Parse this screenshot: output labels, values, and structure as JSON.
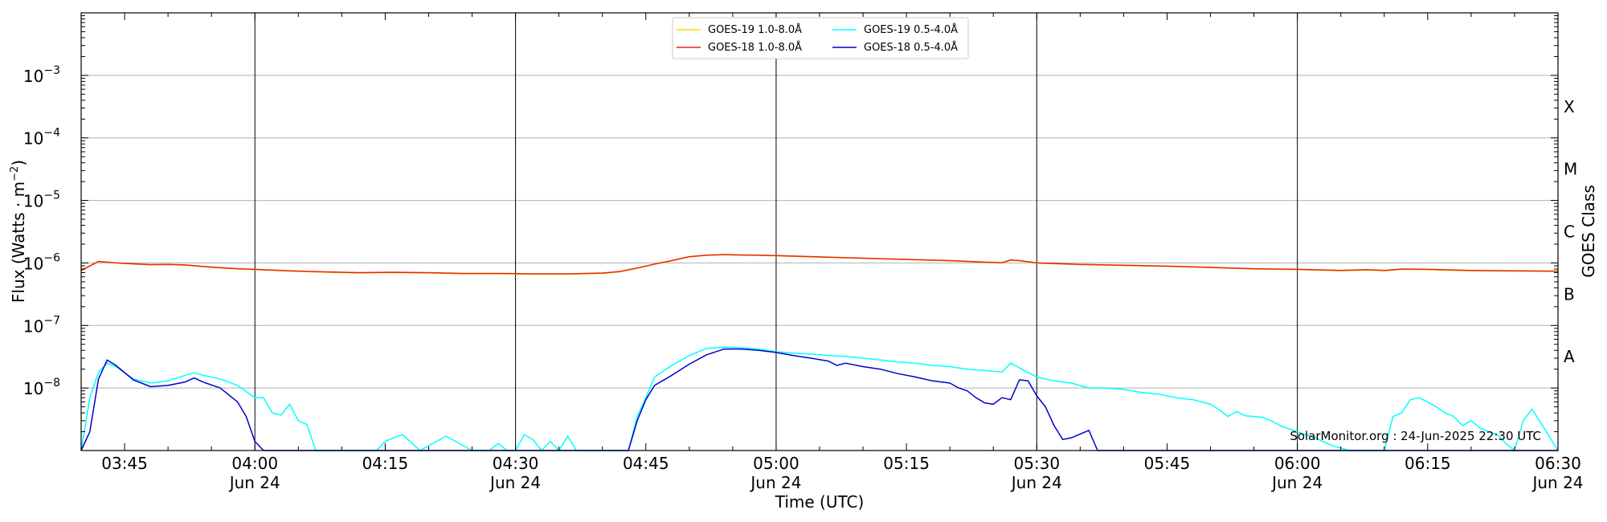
{
  "chart_data": {
    "type": "line",
    "ylabel": "Flux (Watts · m",
    "ylabel_sup": "−2",
    "ylabel_close": ")",
    "xlabel": "Time (UTC)",
    "right_label": "GOES Class",
    "watermark": "SolarMonitor.org : 24-Jun-2025 22:30 UTC",
    "y_scale": "log",
    "ylim": [
      1e-09,
      0.01
    ],
    "xlim": [
      "03:40",
      "06:30"
    ],
    "y_ticks": [
      {
        "value": 1e-08,
        "base": "10",
        "exp": "−8"
      },
      {
        "value": 1e-07,
        "base": "10",
        "exp": "−7"
      },
      {
        "value": 1e-06,
        "base": "10",
        "exp": "−6"
      },
      {
        "value": 1e-05,
        "base": "10",
        "exp": "−5"
      },
      {
        "value": 0.0001,
        "base": "10",
        "exp": "−4"
      },
      {
        "value": 0.001,
        "base": "10",
        "exp": "−3"
      }
    ],
    "x_ticks": [
      {
        "time": "03:45",
        "label": "03:45",
        "date": ""
      },
      {
        "time": "04:00",
        "label": "04:00",
        "date": "Jun 24"
      },
      {
        "time": "04:15",
        "label": "04:15",
        "date": ""
      },
      {
        "time": "04:30",
        "label": "04:30",
        "date": "Jun 24"
      },
      {
        "time": "04:45",
        "label": "04:45",
        "date": ""
      },
      {
        "time": "05:00",
        "label": "05:00",
        "date": "Jun 24"
      },
      {
        "time": "05:15",
        "label": "05:15",
        "date": ""
      },
      {
        "time": "05:30",
        "label": "05:30",
        "date": "Jun 24"
      },
      {
        "time": "05:45",
        "label": "05:45",
        "date": ""
      },
      {
        "time": "06:00",
        "label": "06:00",
        "date": "Jun 24"
      },
      {
        "time": "06:15",
        "label": "06:15",
        "date": ""
      },
      {
        "time": "06:30",
        "label": "06:30",
        "date": "Jun 24"
      }
    ],
    "vertical_lines": [
      "04:00",
      "04:30",
      "05:00",
      "05:30",
      "06:00"
    ],
    "goes_classes": [
      {
        "label": "A",
        "low": 1e-08
      },
      {
        "label": "B",
        "low": 1e-07
      },
      {
        "label": "C",
        "low": 1e-06
      },
      {
        "label": "M",
        "low": 1e-05
      },
      {
        "label": "X",
        "low": 0.0001
      }
    ],
    "grid": true,
    "legend_position": "top-center",
    "series": [
      {
        "name": "GOES-19 1.0-8.0Å",
        "color": "#ffd700",
        "x": [
          "03:40",
          "03:42",
          "03:44",
          "03:46",
          "03:48",
          "03:50",
          "03:52",
          "03:54",
          "03:56",
          "03:58",
          "04:00",
          "04:04",
          "04:08",
          "04:12",
          "04:16",
          "04:20",
          "04:24",
          "04:28",
          "04:32",
          "04:36",
          "04:40",
          "04:42",
          "04:44",
          "04:46",
          "04:48",
          "04:50",
          "04:52",
          "04:54",
          "04:56",
          "04:58",
          "05:00",
          "05:05",
          "05:10",
          "05:15",
          "05:20",
          "05:24",
          "05:26",
          "05:27",
          "05:28",
          "05:30",
          "05:35",
          "05:40",
          "05:45",
          "05:50",
          "05:55",
          "06:00",
          "06:05",
          "06:08",
          "06:10",
          "06:12",
          "06:15",
          "06:20",
          "06:25",
          "06:30"
        ],
        "y": [
          7.5e-07,
          1.05e-06,
          1e-06,
          9.6e-07,
          9.3e-07,
          9.4e-07,
          9.2e-07,
          8.7e-07,
          8.3e-07,
          8e-07,
          7.8e-07,
          7.4e-07,
          7.1e-07,
          6.9e-07,
          7e-07,
          6.9e-07,
          6.7e-07,
          6.7e-07,
          6.6e-07,
          6.6e-07,
          6.8e-07,
          7.2e-07,
          8.2e-07,
          9.5e-07,
          1.08e-06,
          1.25e-06,
          1.32e-06,
          1.35e-06,
          1.33e-06,
          1.32e-06,
          1.3e-06,
          1.24e-06,
          1.18e-06,
          1.13e-06,
          1.08e-06,
          1.02e-06,
          1e-06,
          1.1e-06,
          1.08e-06,
          9.9e-07,
          9.4e-07,
          9.1e-07,
          8.8e-07,
          8.4e-07,
          8e-07,
          7.8e-07,
          7.5e-07,
          7.7e-07,
          7.5e-07,
          7.9e-07,
          7.8e-07,
          7.5e-07,
          7.4e-07,
          7.3e-07
        ]
      },
      {
        "name": "GOES-18 1.0-8.0Å",
        "color": "#e8260c",
        "x": [
          "03:40",
          "03:42",
          "03:44",
          "03:46",
          "03:48",
          "03:50",
          "03:52",
          "03:54",
          "03:56",
          "03:58",
          "04:00",
          "04:04",
          "04:08",
          "04:12",
          "04:16",
          "04:20",
          "04:24",
          "04:28",
          "04:32",
          "04:36",
          "04:40",
          "04:42",
          "04:44",
          "04:46",
          "04:48",
          "04:50",
          "04:52",
          "04:54",
          "04:56",
          "04:58",
          "05:00",
          "05:05",
          "05:10",
          "05:15",
          "05:20",
          "05:24",
          "05:26",
          "05:27",
          "05:28",
          "05:30",
          "05:35",
          "05:40",
          "05:45",
          "05:50",
          "05:55",
          "06:00",
          "06:05",
          "06:08",
          "06:10",
          "06:12",
          "06:15",
          "06:20",
          "06:25",
          "06:30"
        ],
        "y": [
          7.6e-07,
          1.06e-06,
          1e-06,
          9.7e-07,
          9.4e-07,
          9.5e-07,
          9.3e-07,
          8.8e-07,
          8.4e-07,
          8.1e-07,
          7.9e-07,
          7.5e-07,
          7.2e-07,
          7e-07,
          7.1e-07,
          7e-07,
          6.8e-07,
          6.8e-07,
          6.7e-07,
          6.7e-07,
          6.9e-07,
          7.3e-07,
          8.3e-07,
          9.6e-07,
          1.09e-06,
          1.26e-06,
          1.33e-06,
          1.36e-06,
          1.34e-06,
          1.33e-06,
          1.31e-06,
          1.25e-06,
          1.19e-06,
          1.14e-06,
          1.09e-06,
          1.03e-06,
          1.01e-06,
          1.12e-06,
          1.09e-06,
          1e-06,
          9.5e-07,
          9.2e-07,
          8.9e-07,
          8.5e-07,
          8.1e-07,
          7.9e-07,
          7.6e-07,
          7.8e-07,
          7.6e-07,
          8e-07,
          7.9e-07,
          7.6e-07,
          7.5e-07,
          7.4e-07
        ]
      },
      {
        "name": "GOES-19 0.5-4.0Å",
        "color": "#00ffff",
        "x": [
          "03:40",
          "03:41",
          "03:42",
          "03:43",
          "03:44",
          "03:46",
          "03:48",
          "03:50",
          "03:52",
          "03:53",
          "03:54",
          "03:56",
          "03:58",
          "04:00",
          "04:01",
          "04:02",
          "04:03",
          "04:04",
          "04:05",
          "04:06",
          "04:07",
          "04:10",
          "04:12",
          "04:14",
          "04:15",
          "04:16",
          "04:17",
          "04:19",
          "04:22",
          "04:25",
          "04:27",
          "04:28",
          "04:29",
          "04:30",
          "04:31",
          "04:32",
          "04:33",
          "04:34",
          "04:35",
          "04:36",
          "04:37",
          "04:38",
          "04:39",
          "04:40",
          "04:41",
          "04:42",
          "04:43",
          "04:44",
          "04:45",
          "04:46",
          "04:48",
          "04:50",
          "04:52",
          "04:54",
          "04:56",
          "04:58",
          "05:00",
          "05:02",
          "05:04",
          "05:06",
          "05:08",
          "05:10",
          "05:12",
          "05:14",
          "05:16",
          "05:18",
          "05:20",
          "05:22",
          "05:24",
          "05:26",
          "05:27",
          "05:28",
          "05:30",
          "05:32",
          "05:34",
          "05:36",
          "05:38",
          "05:40",
          "05:42",
          "05:44",
          "05:46",
          "05:48",
          "05:50",
          "05:51",
          "05:52",
          "05:53",
          "05:54",
          "05:56",
          "05:57",
          "05:58",
          "06:00",
          "06:02",
          "06:04",
          "06:06",
          "06:07",
          "06:08",
          "06:09",
          "06:10",
          "06:11",
          "06:12",
          "06:13",
          "06:14",
          "06:15",
          "06:16",
          "06:17",
          "06:18",
          "06:19",
          "06:20",
          "06:21",
          "06:22",
          "06:23",
          "06:24",
          "06:25",
          "06:26",
          "06:27",
          "06:28",
          "06:30"
        ],
        "y": [
          1e-09,
          7e-09,
          1.8e-08,
          2.5e-08,
          2.2e-08,
          1.4e-08,
          1.2e-08,
          1.3e-08,
          1.6e-08,
          1.75e-08,
          1.6e-08,
          1.4e-08,
          1.1e-08,
          7e-09,
          7e-09,
          4e-09,
          3.7e-09,
          5.5e-09,
          3e-09,
          2.6e-09,
          1e-09,
          1e-09,
          1e-09,
          1e-09,
          1.4e-09,
          1.6e-09,
          1.8e-09,
          1e-09,
          1.7e-09,
          1e-09,
          1e-09,
          1.3e-09,
          1e-09,
          1e-09,
          1.8e-09,
          1.5e-09,
          1e-09,
          1.4e-09,
          1e-09,
          1.7e-09,
          1e-09,
          1e-09,
          1e-09,
          1e-09,
          1e-09,
          1e-09,
          1e-09,
          3.5e-09,
          7e-09,
          1.5e-08,
          2.3e-08,
          3.3e-08,
          4.3e-08,
          4.5e-08,
          4.4e-08,
          4.2e-08,
          3.8e-08,
          3.6e-08,
          3.5e-08,
          3.3e-08,
          3.2e-08,
          3e-08,
          2.8e-08,
          2.6e-08,
          2.5e-08,
          2.3e-08,
          2.2e-08,
          2e-08,
          1.9e-08,
          1.8e-08,
          2.5e-08,
          2.1e-08,
          1.5e-08,
          1.3e-08,
          1.2e-08,
          1e-08,
          1e-08,
          9.5e-09,
          8.5e-09,
          8e-09,
          7e-09,
          6.5e-09,
          5.5e-09,
          4.5e-09,
          3.5e-09,
          4.2e-09,
          3.6e-09,
          3.4e-09,
          3e-09,
          2.5e-09,
          2e-09,
          1.6e-09,
          1.2e-09,
          1e-09,
          1e-09,
          1e-09,
          1e-09,
          1e-09,
          3.5e-09,
          4e-09,
          6.5e-09,
          7e-09,
          6e-09,
          5e-09,
          4e-09,
          3.5e-09,
          2.5e-09,
          3e-09,
          2.3e-09,
          2e-09,
          1.8e-09,
          1.3e-09,
          1e-09,
          3e-09,
          4.6e-09,
          2.8e-09,
          1e-09
        ]
      },
      {
        "name": "GOES-18 0.5-4.0Å",
        "color": "#0000cc",
        "x": [
          "03:40",
          "03:41",
          "03:42",
          "03:43",
          "03:44",
          "03:46",
          "03:48",
          "03:50",
          "03:52",
          "03:53",
          "03:54",
          "03:56",
          "03:58",
          "03:59",
          "04:00",
          "04:01",
          "04:30",
          "04:43",
          "04:44",
          "04:45",
          "04:46",
          "04:48",
          "04:50",
          "04:52",
          "04:54",
          "04:56",
          "04:58",
          "05:00",
          "05:02",
          "05:04",
          "05:06",
          "05:07",
          "05:08",
          "05:10",
          "05:12",
          "05:14",
          "05:16",
          "05:18",
          "05:20",
          "05:21",
          "05:22",
          "05:23",
          "05:24",
          "05:25",
          "05:26",
          "05:27",
          "05:28",
          "05:29",
          "05:30",
          "05:31",
          "05:32",
          "05:33",
          "05:34",
          "05:36",
          "05:37",
          "06:30"
        ],
        "y": [
          1e-09,
          2e-09,
          1.4e-08,
          2.8e-08,
          2.3e-08,
          1.35e-08,
          1.05e-08,
          1.1e-08,
          1.25e-08,
          1.45e-08,
          1.25e-08,
          1e-08,
          6e-09,
          3.5e-09,
          1.4e-09,
          1e-09,
          1e-09,
          1e-09,
          3e-09,
          6.5e-09,
          1.1e-08,
          1.6e-08,
          2.4e-08,
          3.4e-08,
          4.2e-08,
          4.2e-08,
          4e-08,
          3.7e-08,
          3.3e-08,
          3e-08,
          2.7e-08,
          2.3e-08,
          2.5e-08,
          2.2e-08,
          2e-08,
          1.7e-08,
          1.5e-08,
          1.3e-08,
          1.2e-08,
          1e-08,
          9e-09,
          7e-09,
          5.8e-09,
          5.5e-09,
          7e-09,
          6.5e-09,
          1.35e-08,
          1.3e-08,
          7.5e-09,
          5e-09,
          2.5e-09,
          1.5e-09,
          1.6e-09,
          2.1e-09,
          1e-09,
          1e-09
        ]
      }
    ]
  }
}
